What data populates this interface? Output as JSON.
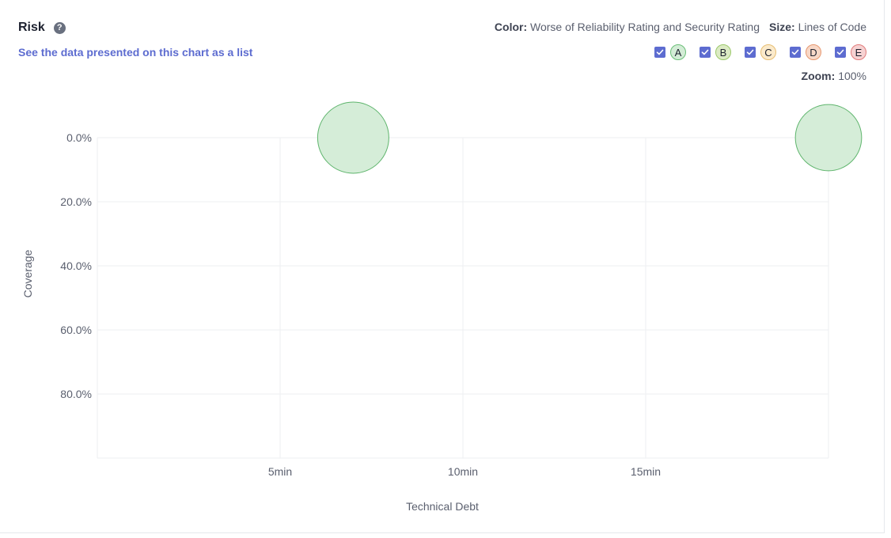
{
  "header": {
    "title": "Risk",
    "help_icon": "question-circle-icon",
    "data_link": "See the data presented on this chart as a list"
  },
  "legend": {
    "color_label": "Color:",
    "color_value": "Worse of Reliability Rating and Security Rating",
    "size_label": "Size:",
    "size_value": "Lines of Code",
    "ratings": [
      {
        "label": "A",
        "checked": true,
        "fill": "#d3ecd6",
        "border": "#6bbf78"
      },
      {
        "label": "B",
        "checked": true,
        "fill": "#dcebc4",
        "border": "#9cc96b"
      },
      {
        "label": "C",
        "checked": true,
        "fill": "#fbeacb",
        "border": "#e7be72"
      },
      {
        "label": "D",
        "checked": true,
        "fill": "#f8d8c7",
        "border": "#e69870"
      },
      {
        "label": "E",
        "checked": true,
        "fill": "#f6d2d2",
        "border": "#e17b7b"
      }
    ]
  },
  "zoom": {
    "label": "Zoom",
    "value": "100%"
  },
  "chart_data": {
    "type": "scatter",
    "xlabel": "Technical Debt",
    "ylabel": "Coverage",
    "x_unit": "min",
    "xlim": [
      0,
      20
    ],
    "ylim": [
      0,
      100
    ],
    "y_inverted": true,
    "x_ticks": [
      {
        "value": 5,
        "label": "5min"
      },
      {
        "value": 10,
        "label": "10min"
      },
      {
        "value": 15,
        "label": "15min"
      }
    ],
    "y_ticks": [
      {
        "value": 0,
        "label": "0.0%"
      },
      {
        "value": 20,
        "label": "20.0%"
      },
      {
        "value": 40,
        "label": "40.0%"
      },
      {
        "value": 60,
        "label": "60.0%"
      },
      {
        "value": 80,
        "label": "80.0%"
      }
    ],
    "grid": true,
    "points": [
      {
        "x": 7,
        "y": 0,
        "size": 1.0,
        "rating": "A"
      },
      {
        "x": 20,
        "y": 0,
        "size": 0.93,
        "rating": "A"
      }
    ],
    "point_fill": "#d3ecd6",
    "point_stroke": "#5fb56d"
  }
}
